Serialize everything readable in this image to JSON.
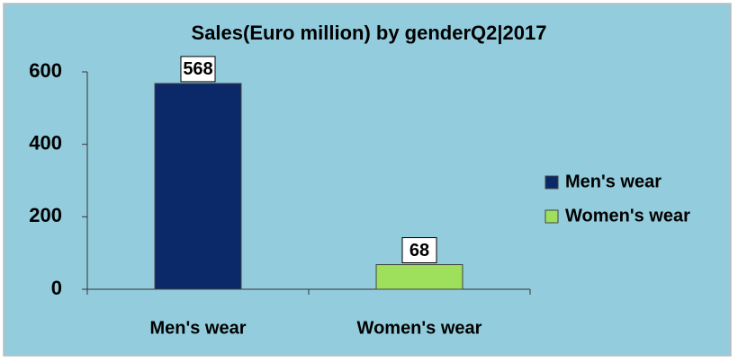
{
  "chart_data": {
    "type": "bar",
    "title": "Sales(Euro million) by genderQ2|2017",
    "categories": [
      "Men's wear",
      "Women's wear"
    ],
    "series": [
      {
        "name": "Men's wear",
        "color": "#0b2868",
        "values": [
          568,
          null
        ]
      },
      {
        "name": "Women's wear",
        "color": "#9ee05c",
        "values": [
          null,
          68
        ]
      }
    ],
    "ylim": [
      0,
      600
    ],
    "yticks": [
      0,
      200,
      400,
      600
    ],
    "grid": false,
    "legend": "right"
  }
}
